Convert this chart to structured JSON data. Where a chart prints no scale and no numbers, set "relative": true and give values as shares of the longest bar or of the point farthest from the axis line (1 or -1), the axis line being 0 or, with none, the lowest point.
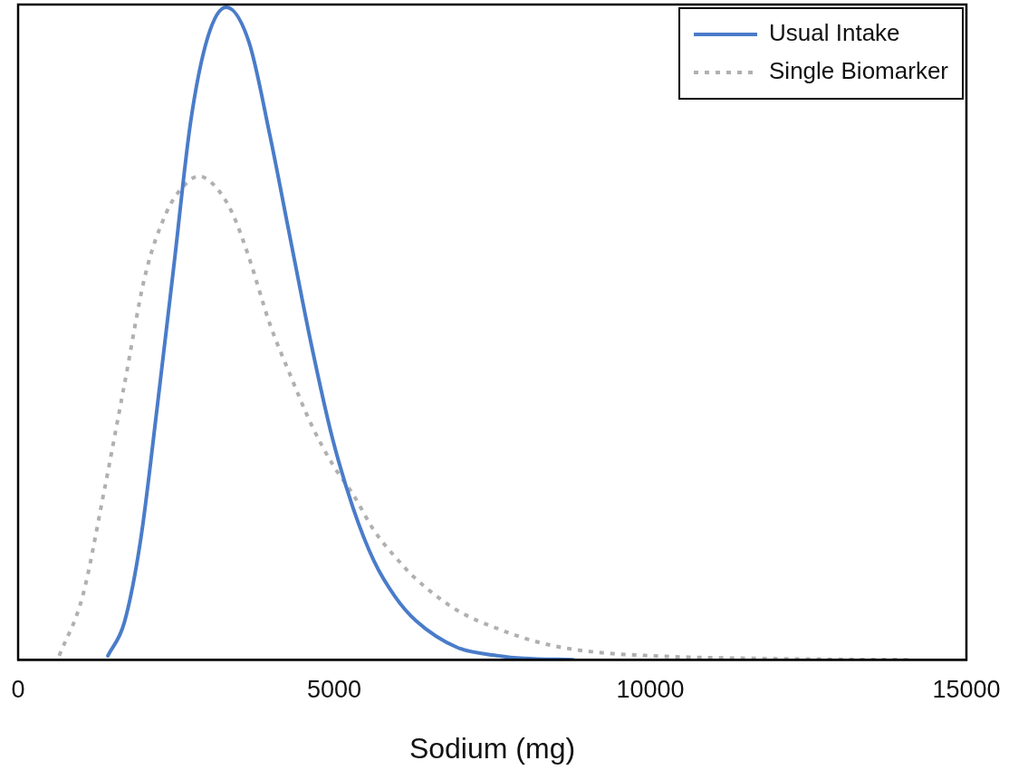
{
  "chart_data": {
    "type": "line",
    "xlabel": "Sodium (mg)",
    "relative": true,
    "xlim": [
      0,
      15000
    ],
    "xticks": [
      0,
      5000,
      10000,
      15000
    ],
    "grid": false,
    "legend": "top right",
    "marker": "none",
    "series": [
      {
        "name": "Usual Intake",
        "color": "#4a7cc9",
        "line_style": "solid",
        "x": [
          1420,
          1680,
          1940,
          2200,
          2470,
          2730,
          3000,
          3290,
          3650,
          3980,
          4310,
          4640,
          4970,
          5300,
          5630,
          5960,
          6290,
          6940,
          7600,
          8000,
          8780
        ],
        "values": [
          0.006,
          0.057,
          0.185,
          0.387,
          0.609,
          0.825,
          0.954,
          1,
          0.947,
          0.805,
          0.643,
          0.482,
          0.34,
          0.232,
          0.151,
          0.097,
          0.06,
          0.019,
          0.006,
          0.002,
          0
        ]
      },
      {
        "name": "Single Biomarker",
        "color": "#b0b0b0",
        "line_style": "dotted",
        "x": [
          650,
          1020,
          1350,
          1680,
          2010,
          2340,
          2600,
          2860,
          3130,
          3390,
          3650,
          3980,
          4310,
          4640,
          4970,
          5300,
          5630,
          5960,
          6290,
          6940,
          7600,
          8260,
          9000,
          10010,
          11000,
          12500,
          14100
        ],
        "values": [
          0.006,
          0.097,
          0.253,
          0.421,
          0.589,
          0.684,
          0.724,
          0.741,
          0.724,
          0.684,
          0.617,
          0.515,
          0.435,
          0.36,
          0.3,
          0.253,
          0.198,
          0.158,
          0.124,
          0.076,
          0.047,
          0.026,
          0.013,
          0.006,
          0.003,
          0.001,
          0
        ]
      }
    ]
  }
}
